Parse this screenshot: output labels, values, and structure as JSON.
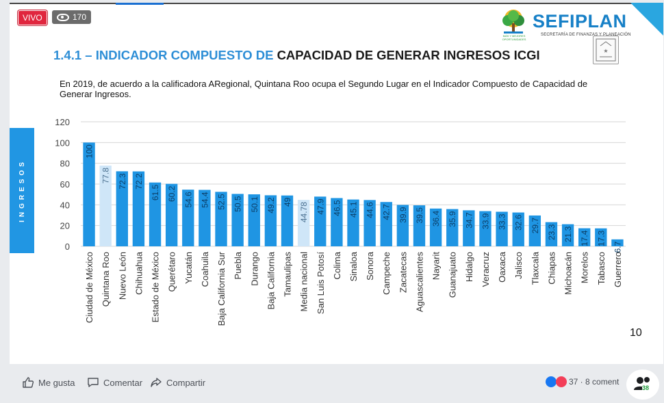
{
  "live_badge": "VIVO",
  "viewer_count": "170",
  "logo": {
    "name": "SEFIPLAN",
    "subtitle": "SECRETARÍA DE FINANZAS Y PLANEACIÓN",
    "tagline": "MÁS Y MEJORES OPORTUNIDADES"
  },
  "title": {
    "part1": "1.4.1 – INDICADOR COMPUESTO DE ",
    "part2": "CAPACIDAD DE GENERAR INGRESOS ICGI"
  },
  "intro": "En 2019, de acuerdo a la calificadora ARegional, Quintana Roo ocupa el Segundo Lugar en el Indicador Compuesto de Capacidad de Generar Ingresos.",
  "side_label": "INGRESOS",
  "page_number": "10",
  "colors": {
    "bar": "#1f95e3",
    "highlight": "#cfe6f8",
    "title_blue": "#2d8ed6"
  },
  "chart_data": {
    "type": "bar",
    "ylim": [
      0,
      120
    ],
    "yticks": [
      "0",
      "20",
      "40",
      "60",
      "80",
      "100",
      "120"
    ],
    "grid": true,
    "categories": [
      "Ciudad de México",
      "Quintana Roo",
      "Nuevo León",
      "Chihuahua",
      "Estado de México",
      "Querétaro",
      "Yucatán",
      "Coahuila",
      "Baja California Sur",
      "Puebla",
      "Durango",
      "Baja California",
      "Tamaulipas",
      "Media nacional",
      "San Luis Potosí",
      "Colima",
      "Sinaloa",
      "Sonora",
      "Campeche",
      "Zacatecas",
      "Aguascalientes",
      "Nayarit",
      "Guanajuato",
      "Hidalgo",
      "Veracruz",
      "Oaxaca",
      "Jalisco",
      "Tlaxcala",
      "Chiapas",
      "Michoacán",
      "Morelos",
      "Tabasco",
      "Guerrero"
    ],
    "values": [
      100,
      77.8,
      72.3,
      72.2,
      61.5,
      60.2,
      54.6,
      54.4,
      52.5,
      50.5,
      50.1,
      49.2,
      49,
      44.78,
      47.9,
      46.5,
      45.1,
      44.6,
      42.7,
      39.9,
      39.5,
      36.4,
      35.9,
      34.7,
      33.9,
      33.3,
      32.6,
      29.7,
      23.3,
      21.3,
      17.4,
      17.3,
      6.7
    ],
    "labels": [
      "100",
      "77.8",
      "72.3",
      "72.2",
      "61.5",
      "60.2",
      "54.6",
      "54.4",
      "52.5",
      "50.5",
      "50.1",
      "49.2",
      "49",
      "44.78",
      "47.9",
      "46.5",
      "45.1",
      "44.6",
      "42.7",
      "39.9",
      "39.5",
      "36.4",
      "35.9",
      "34.7",
      "33.9",
      "33.3",
      "32.6",
      "29.7",
      "23.3",
      "21.3",
      "17.4",
      "17.3",
      "6.7"
    ],
    "highlighted": [
      "Quintana Roo",
      "Media nacional"
    ]
  },
  "actions": {
    "like": "Me gusta",
    "comment": "Comentar",
    "share": "Compartir",
    "reactions": "37 · 8 coment",
    "people_count": "38"
  }
}
